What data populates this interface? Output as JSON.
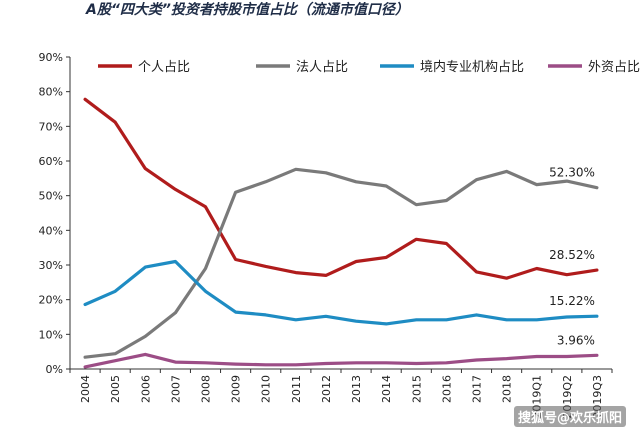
{
  "title": "A股“四大类”投资者持股市值占比（流通市值口径）",
  "watermark": "搜狐号@欢乐抓阳",
  "chart_data": {
    "type": "line",
    "title": "A股“四大类”投资者持股市值占比（流通市值口径）",
    "categories": [
      "2004",
      "2005",
      "2006",
      "2007",
      "2008",
      "2009",
      "2010",
      "2011",
      "2012",
      "2013",
      "2014",
      "2015",
      "2016",
      "2017",
      "2018",
      "2019Q1",
      "2019Q2",
      "2019Q3"
    ],
    "ylim": [
      0,
      90
    ],
    "yticks": [
      "0%",
      "10%",
      "20%",
      "30%",
      "40%",
      "50%",
      "60%",
      "70%",
      "80%",
      "90%"
    ],
    "grid": false,
    "legend": "top",
    "series": [
      {
        "name": "个人占比",
        "color": "#b01c1c",
        "values": [
          77.8,
          71.2,
          57.8,
          51.8,
          46.8,
          31.6,
          29.6,
          27.8,
          27.0,
          31.0,
          32.2,
          37.4,
          36.2,
          28.0,
          26.2,
          29.0,
          27.2,
          28.52
        ],
        "end_label": "28.52%"
      },
      {
        "name": "法人占比",
        "color": "#7a7a7a",
        "values": [
          3.4,
          4.4,
          9.4,
          16.2,
          29.0,
          51.0,
          54.0,
          57.6,
          56.6,
          54.0,
          52.8,
          47.4,
          48.6,
          54.6,
          57.0,
          53.2,
          54.2,
          52.3
        ],
        "end_label": "52.30%"
      },
      {
        "name": "境内专业机构占比",
        "color": "#1e8cc3",
        "values": [
          18.6,
          22.4,
          29.4,
          31.0,
          22.4,
          16.4,
          15.6,
          14.2,
          15.2,
          13.8,
          13.0,
          14.2,
          14.2,
          15.6,
          14.2,
          14.2,
          15.0,
          15.22
        ],
        "end_label": "15.22%"
      },
      {
        "name": "外资占比",
        "color": "#9c4d86",
        "values": [
          0.6,
          2.4,
          4.2,
          2.0,
          1.8,
          1.4,
          1.2,
          1.2,
          1.6,
          1.8,
          1.8,
          1.6,
          1.8,
          2.6,
          3.0,
          3.6,
          3.6,
          3.96
        ],
        "end_label": "3.96%"
      }
    ]
  }
}
